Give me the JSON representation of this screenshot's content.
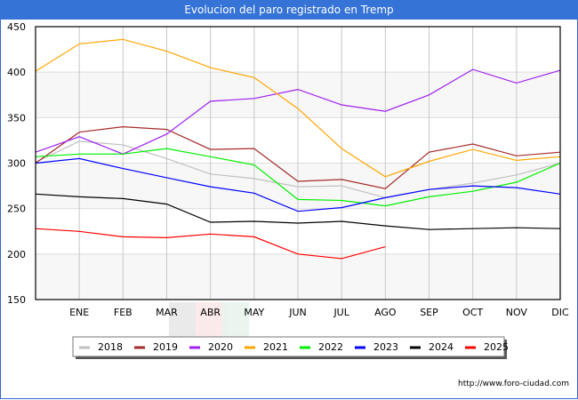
{
  "header": {
    "title": "Evolucion del paro registrado en Tremp"
  },
  "footer": {
    "url": "http://www.foro-ciudad.com"
  },
  "chart_data": {
    "type": "line",
    "title": "Evolucion del paro registrado en Tremp",
    "xlabel": "",
    "ylabel": "",
    "categories": [
      "",
      "ENE",
      "FEB",
      "MAR",
      "ABR",
      "MAY",
      "JUN",
      "JUL",
      "AGO",
      "SEP",
      "OCT",
      "NOV",
      "DIC"
    ],
    "ylim": [
      150,
      450
    ],
    "yticks": [
      150,
      200,
      250,
      300,
      350,
      400,
      450
    ],
    "grid": true,
    "legend_position": "bottom",
    "series": [
      {
        "name": "2018",
        "color": "#c0c0c0",
        "values": [
          301,
          324,
          320,
          305,
          288,
          283,
          274,
          275,
          262,
          271,
          278,
          287,
          300
        ]
      },
      {
        "name": "2019",
        "color": "#a52a2a",
        "values": [
          300,
          334,
          340,
          337,
          315,
          316,
          280,
          282,
          272,
          312,
          321,
          308,
          312
        ]
      },
      {
        "name": "2020",
        "color": "#a020f0",
        "values": [
          312,
          329,
          310,
          332,
          368,
          371,
          381,
          364,
          357,
          375,
          403,
          388,
          402
        ]
      },
      {
        "name": "2021",
        "color": "#ffa500",
        "values": [
          401,
          431,
          436,
          423,
          405,
          394,
          360,
          316,
          285,
          302,
          315,
          303,
          307
        ]
      },
      {
        "name": "2022",
        "color": "#00ee00",
        "values": [
          307,
          310,
          310,
          316,
          307,
          298,
          260,
          259,
          253,
          263,
          269,
          279,
          300
        ]
      },
      {
        "name": "2023",
        "color": "#0000ff",
        "values": [
          300,
          305,
          294,
          284,
          274,
          267,
          247,
          251,
          262,
          271,
          275,
          273,
          266
        ]
      },
      {
        "name": "2024",
        "color": "#000000",
        "values": [
          266,
          263,
          261,
          255,
          235,
          236,
          234,
          236,
          231,
          227,
          228,
          229,
          228
        ]
      },
      {
        "name": "2025",
        "color": "#ff0000",
        "values": [
          228,
          225,
          219,
          218,
          222,
          219,
          200,
          195,
          208
        ]
      }
    ]
  }
}
